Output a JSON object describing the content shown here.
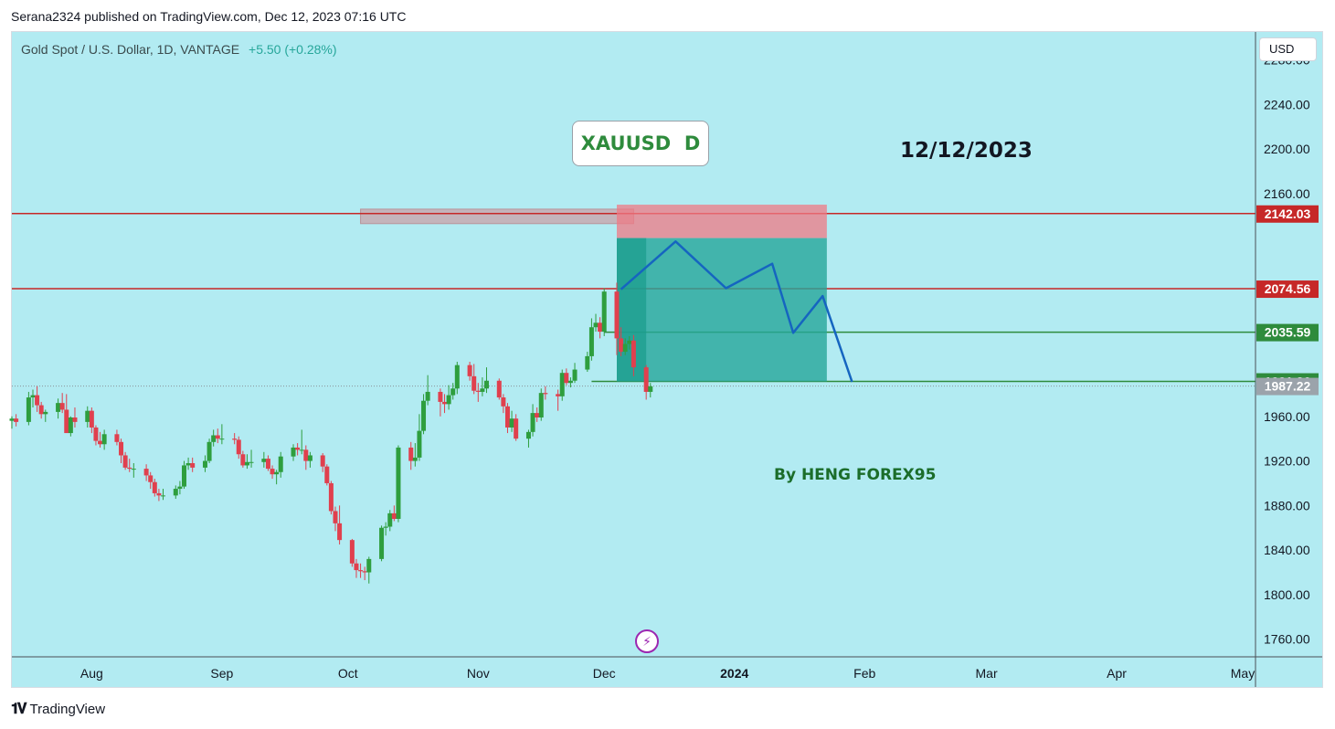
{
  "header": {
    "published_by": "Serana2324 published on TradingView.com, Dec 12, 2023 07:16 UTC"
  },
  "symbol": {
    "description": "Gold Spot / U.S. Dollar, 1D, VANTAGE",
    "change": "+5.50 (+0.28%)"
  },
  "currency_label": "USD",
  "annotations": {
    "title": "XAUUSD  D",
    "date": "12/12/2023",
    "author": "By HENG FOREX95"
  },
  "footer": {
    "brand": "TradingView"
  },
  "colors": {
    "background": "#b2ebf2",
    "up_candle": "#2e9e3e",
    "down_candle": "#e0404e",
    "resistance_line": "#c62828",
    "support_line": "#2e8b3c",
    "target_zone": "#26a69a",
    "stop_zone": "#ef7a84",
    "projection_path": "#1565c0",
    "current_price_tag": "#9ba3ab"
  },
  "chart_data": {
    "type": "candlestick",
    "instrument": "XAUUSD",
    "timeframe": "1D",
    "ylim": [
      1745,
      2305
    ],
    "y_ticks": [
      "2280.00",
      "2240.00",
      "2200.00",
      "2160.00",
      "1960.00",
      "1920.00",
      "1880.00",
      "1840.00",
      "1800.00",
      "1760.00"
    ],
    "x_ticks": [
      "Aug",
      "Sep",
      "Oct",
      "Nov",
      "Dec",
      "2024",
      "Feb",
      "Mar",
      "Apr",
      "May"
    ],
    "x_range": [
      "2023-07-13",
      "2024-05-01"
    ],
    "last_price": 1987.22,
    "price_tags": [
      {
        "label": "2142.03",
        "value": 2142.03,
        "kind": "resistance"
      },
      {
        "label": "2074.56",
        "value": 2074.56,
        "kind": "resistance"
      },
      {
        "label": "2035.59",
        "value": 2035.59,
        "kind": "support"
      },
      {
        "label": "1991.36",
        "value": 1991.36,
        "kind": "support"
      },
      {
        "label": "1987.22",
        "value": 1987.22,
        "kind": "last"
      }
    ],
    "horizontal_lines": [
      {
        "value": 2142.03,
        "from": "2023-07-13",
        "kind": "resistance"
      },
      {
        "value": 2074.56,
        "from": "2023-07-13",
        "kind": "resistance"
      },
      {
        "value": 2035.59,
        "from": "2023-12-01",
        "kind": "support"
      },
      {
        "value": 1991.36,
        "from": "2023-11-28",
        "kind": "support"
      }
    ],
    "supply_zone": {
      "from": "2023-10-04",
      "to": "2023-12-08",
      "high": 2146,
      "low": 2133
    },
    "position": {
      "from": "2023-12-04",
      "to": "2024-01-23",
      "entry": 2120,
      "stop": 2150,
      "target": 1991.36
    },
    "projection_path": [
      {
        "date": "2023-12-05",
        "price": 2074
      },
      {
        "date": "2023-12-18",
        "price": 2117
      },
      {
        "date": "2023-12-30",
        "price": 2075
      },
      {
        "date": "2024-01-10",
        "price": 2097
      },
      {
        "date": "2024-01-15",
        "price": 2035
      },
      {
        "date": "2024-01-22",
        "price": 2068
      },
      {
        "date": "2024-01-29",
        "price": 1991
      }
    ],
    "candles": [
      {
        "d": "2023-07-13",
        "o": 1956,
        "h": 1960,
        "l": 1949,
        "c": 1958
      },
      {
        "d": "2023-07-14",
        "o": 1958,
        "h": 1962,
        "l": 1951,
        "c": 1955
      },
      {
        "d": "2023-07-17",
        "o": 1955,
        "h": 1982,
        "l": 1952,
        "c": 1977
      },
      {
        "d": "2023-07-18",
        "o": 1977,
        "h": 1984,
        "l": 1968,
        "c": 1979
      },
      {
        "d": "2023-07-19",
        "o": 1979,
        "h": 1987,
        "l": 1964,
        "c": 1970
      },
      {
        "d": "2023-07-20",
        "o": 1970,
        "h": 1973,
        "l": 1958,
        "c": 1962
      },
      {
        "d": "2023-07-21",
        "o": 1962,
        "h": 1966,
        "l": 1955,
        "c": 1964
      },
      {
        "d": "2023-07-24",
        "o": 1964,
        "h": 1976,
        "l": 1958,
        "c": 1972
      },
      {
        "d": "2023-07-25",
        "o": 1972,
        "h": 1981,
        "l": 1963,
        "c": 1966
      },
      {
        "d": "2023-07-26",
        "o": 1966,
        "h": 1980,
        "l": 1950,
        "c": 1945
      },
      {
        "d": "2023-07-27",
        "o": 1945,
        "h": 1960,
        "l": 1942,
        "c": 1959
      },
      {
        "d": "2023-07-28",
        "o": 1959,
        "h": 1968,
        "l": 1950,
        "c": 1955
      },
      {
        "d": "2023-07-31",
        "o": 1955,
        "h": 1969,
        "l": 1950,
        "c": 1965
      },
      {
        "d": "2023-08-01",
        "o": 1965,
        "h": 1968,
        "l": 1945,
        "c": 1950
      },
      {
        "d": "2023-08-02",
        "o": 1950,
        "h": 1952,
        "l": 1934,
        "c": 1938
      },
      {
        "d": "2023-08-03",
        "o": 1938,
        "h": 1946,
        "l": 1932,
        "c": 1935
      },
      {
        "d": "2023-08-04",
        "o": 1935,
        "h": 1948,
        "l": 1930,
        "c": 1944
      },
      {
        "d": "2023-08-07",
        "o": 1944,
        "h": 1948,
        "l": 1934,
        "c": 1937
      },
      {
        "d": "2023-08-08",
        "o": 1937,
        "h": 1940,
        "l": 1918,
        "c": 1925
      },
      {
        "d": "2023-08-09",
        "o": 1925,
        "h": 1928,
        "l": 1912,
        "c": 1914
      },
      {
        "d": "2023-08-10",
        "o": 1914,
        "h": 1922,
        "l": 1910,
        "c": 1913
      },
      {
        "d": "2023-08-11",
        "o": 1913,
        "h": 1918,
        "l": 1905,
        "c": 1913
      },
      {
        "d": "2023-08-14",
        "o": 1913,
        "h": 1917,
        "l": 1902,
        "c": 1907
      },
      {
        "d": "2023-08-15",
        "o": 1907,
        "h": 1910,
        "l": 1895,
        "c": 1901
      },
      {
        "d": "2023-08-16",
        "o": 1901,
        "h": 1904,
        "l": 1888,
        "c": 1891
      },
      {
        "d": "2023-08-17",
        "o": 1891,
        "h": 1895,
        "l": 1884,
        "c": 1889
      },
      {
        "d": "2023-08-18",
        "o": 1889,
        "h": 1895,
        "l": 1885,
        "c": 1889
      },
      {
        "d": "2023-08-21",
        "o": 1889,
        "h": 1898,
        "l": 1886,
        "c": 1895
      },
      {
        "d": "2023-08-22",
        "o": 1895,
        "h": 1902,
        "l": 1890,
        "c": 1897
      },
      {
        "d": "2023-08-23",
        "o": 1897,
        "h": 1920,
        "l": 1895,
        "c": 1916
      },
      {
        "d": "2023-08-24",
        "o": 1916,
        "h": 1923,
        "l": 1912,
        "c": 1918
      },
      {
        "d": "2023-08-25",
        "o": 1918,
        "h": 1923,
        "l": 1910,
        "c": 1914
      },
      {
        "d": "2023-08-28",
        "o": 1914,
        "h": 1925,
        "l": 1910,
        "c": 1920
      },
      {
        "d": "2023-08-29",
        "o": 1920,
        "h": 1940,
        "l": 1918,
        "c": 1937
      },
      {
        "d": "2023-08-30",
        "o": 1937,
        "h": 1948,
        "l": 1933,
        "c": 1943
      },
      {
        "d": "2023-08-31",
        "o": 1943,
        "h": 1949,
        "l": 1936,
        "c": 1940
      },
      {
        "d": "2023-09-01",
        "o": 1940,
        "h": 1953,
        "l": 1935,
        "c": 1940
      },
      {
        "d": "2023-09-04",
        "o": 1940,
        "h": 1945,
        "l": 1935,
        "c": 1939
      },
      {
        "d": "2023-09-05",
        "o": 1939,
        "h": 1942,
        "l": 1922,
        "c": 1926
      },
      {
        "d": "2023-09-06",
        "o": 1926,
        "h": 1929,
        "l": 1914,
        "c": 1916
      },
      {
        "d": "2023-09-07",
        "o": 1916,
        "h": 1926,
        "l": 1913,
        "c": 1919
      },
      {
        "d": "2023-09-08",
        "o": 1919,
        "h": 1930,
        "l": 1914,
        "c": 1919
      },
      {
        "d": "2023-09-11",
        "o": 1919,
        "h": 1928,
        "l": 1914,
        "c": 1922
      },
      {
        "d": "2023-09-12",
        "o": 1922,
        "h": 1925,
        "l": 1911,
        "c": 1913
      },
      {
        "d": "2023-09-13",
        "o": 1913,
        "h": 1916,
        "l": 1904,
        "c": 1908
      },
      {
        "d": "2023-09-14",
        "o": 1908,
        "h": 1912,
        "l": 1899,
        "c": 1910
      },
      {
        "d": "2023-09-15",
        "o": 1910,
        "h": 1928,
        "l": 1905,
        "c": 1924
      },
      {
        "d": "2023-09-18",
        "o": 1924,
        "h": 1935,
        "l": 1920,
        "c": 1932
      },
      {
        "d": "2023-09-19",
        "o": 1932,
        "h": 1936,
        "l": 1925,
        "c": 1930
      },
      {
        "d": "2023-09-20",
        "o": 1930,
        "h": 1948,
        "l": 1926,
        "c": 1930
      },
      {
        "d": "2023-09-21",
        "o": 1930,
        "h": 1934,
        "l": 1912,
        "c": 1920
      },
      {
        "d": "2023-09-22",
        "o": 1920,
        "h": 1928,
        "l": 1914,
        "c": 1925
      },
      {
        "d": "2023-09-25",
        "o": 1925,
        "h": 1927,
        "l": 1910,
        "c": 1915
      },
      {
        "d": "2023-09-26",
        "o": 1915,
        "h": 1917,
        "l": 1898,
        "c": 1900
      },
      {
        "d": "2023-09-27",
        "o": 1900,
        "h": 1902,
        "l": 1872,
        "c": 1875
      },
      {
        "d": "2023-09-28",
        "o": 1875,
        "h": 1879,
        "l": 1857,
        "c": 1864
      },
      {
        "d": "2023-09-29",
        "o": 1864,
        "h": 1880,
        "l": 1845,
        "c": 1849
      },
      {
        "d": "2023-10-02",
        "o": 1849,
        "h": 1850,
        "l": 1825,
        "c": 1828
      },
      {
        "d": "2023-10-03",
        "o": 1828,
        "h": 1832,
        "l": 1815,
        "c": 1822
      },
      {
        "d": "2023-10-04",
        "o": 1822,
        "h": 1828,
        "l": 1815,
        "c": 1821
      },
      {
        "d": "2023-10-05",
        "o": 1821,
        "h": 1825,
        "l": 1813,
        "c": 1820
      },
      {
        "d": "2023-10-06",
        "o": 1820,
        "h": 1834,
        "l": 1810,
        "c": 1832
      },
      {
        "d": "2023-10-09",
        "o": 1832,
        "h": 1862,
        "l": 1830,
        "c": 1860
      },
      {
        "d": "2023-10-10",
        "o": 1860,
        "h": 1865,
        "l": 1853,
        "c": 1861
      },
      {
        "d": "2023-10-11",
        "o": 1861,
        "h": 1876,
        "l": 1857,
        "c": 1873
      },
      {
        "d": "2023-10-12",
        "o": 1873,
        "h": 1880,
        "l": 1866,
        "c": 1868
      },
      {
        "d": "2023-10-13",
        "o": 1868,
        "h": 1934,
        "l": 1865,
        "c": 1932
      },
      {
        "d": "2023-10-16",
        "o": 1932,
        "h": 1937,
        "l": 1912,
        "c": 1920
      },
      {
        "d": "2023-10-17",
        "o": 1920,
        "h": 1936,
        "l": 1915,
        "c": 1923
      },
      {
        "d": "2023-10-18",
        "o": 1923,
        "h": 1962,
        "l": 1920,
        "c": 1947
      },
      {
        "d": "2023-10-19",
        "o": 1947,
        "h": 1980,
        "l": 1944,
        "c": 1974
      },
      {
        "d": "2023-10-20",
        "o": 1974,
        "h": 1997,
        "l": 1970,
        "c": 1982
      },
      {
        "d": "2023-10-23",
        "o": 1982,
        "h": 1985,
        "l": 1960,
        "c": 1973
      },
      {
        "d": "2023-10-24",
        "o": 1973,
        "h": 1980,
        "l": 1963,
        "c": 1971
      },
      {
        "d": "2023-10-25",
        "o": 1971,
        "h": 1988,
        "l": 1966,
        "c": 1979
      },
      {
        "d": "2023-10-26",
        "o": 1979,
        "h": 1990,
        "l": 1975,
        "c": 1985
      },
      {
        "d": "2023-10-27",
        "o": 1985,
        "h": 2009,
        "l": 1980,
        "c": 2006
      },
      {
        "d": "2023-10-30",
        "o": 2006,
        "h": 2009,
        "l": 1992,
        "c": 1996
      },
      {
        "d": "2023-10-31",
        "o": 1996,
        "h": 2007,
        "l": 1980,
        "c": 1983
      },
      {
        "d": "2023-11-01",
        "o": 1983,
        "h": 1990,
        "l": 1973,
        "c": 1982
      },
      {
        "d": "2023-11-02",
        "o": 1982,
        "h": 1995,
        "l": 1978,
        "c": 1985
      },
      {
        "d": "2023-11-03",
        "o": 1985,
        "h": 2004,
        "l": 1981,
        "c": 1992
      },
      {
        "d": "2023-11-06",
        "o": 1992,
        "h": 1994,
        "l": 1975,
        "c": 1977
      },
      {
        "d": "2023-11-07",
        "o": 1977,
        "h": 1980,
        "l": 1963,
        "c": 1969
      },
      {
        "d": "2023-11-08",
        "o": 1969,
        "h": 1972,
        "l": 1945,
        "c": 1950
      },
      {
        "d": "2023-11-09",
        "o": 1950,
        "h": 1965,
        "l": 1946,
        "c": 1958
      },
      {
        "d": "2023-11-10",
        "o": 1958,
        "h": 1962,
        "l": 1938,
        "c": 1940
      },
      {
        "d": "2023-11-13",
        "o": 1940,
        "h": 1948,
        "l": 1932,
        "c": 1946
      },
      {
        "d": "2023-11-14",
        "o": 1946,
        "h": 1971,
        "l": 1942,
        "c": 1963
      },
      {
        "d": "2023-11-15",
        "o": 1963,
        "h": 1968,
        "l": 1955,
        "c": 1959
      },
      {
        "d": "2023-11-16",
        "o": 1959,
        "h": 1985,
        "l": 1956,
        "c": 1981
      },
      {
        "d": "2023-11-17",
        "o": 1981,
        "h": 1987,
        "l": 1975,
        "c": 1980
      },
      {
        "d": "2023-11-20",
        "o": 1980,
        "h": 1984,
        "l": 1965,
        "c": 1978
      },
      {
        "d": "2023-11-21",
        "o": 1978,
        "h": 2002,
        "l": 1974,
        "c": 1999
      },
      {
        "d": "2023-11-22",
        "o": 1999,
        "h": 2003,
        "l": 1988,
        "c": 1990
      },
      {
        "d": "2023-11-23",
        "o": 1990,
        "h": 1995,
        "l": 1986,
        "c": 1992
      },
      {
        "d": "2023-11-24",
        "o": 1992,
        "h": 2008,
        "l": 1990,
        "c": 2002
      },
      {
        "d": "2023-11-27",
        "o": 2002,
        "h": 2018,
        "l": 2000,
        "c": 2014
      },
      {
        "d": "2023-11-28",
        "o": 2014,
        "h": 2048,
        "l": 2010,
        "c": 2040
      },
      {
        "d": "2023-11-29",
        "o": 2040,
        "h": 2052,
        "l": 2036,
        "c": 2044
      },
      {
        "d": "2023-11-30",
        "o": 2044,
        "h": 2049,
        "l": 2030,
        "c": 2036
      },
      {
        "d": "2023-12-01",
        "o": 2036,
        "h": 2075,
        "l": 2032,
        "c": 2072
      },
      {
        "d": "2023-12-04",
        "o": 2072,
        "h": 2080,
        "l": 2015,
        "c": 2030
      },
      {
        "d": "2023-12-05",
        "o": 2030,
        "h": 2040,
        "l": 2014,
        "c": 2018
      },
      {
        "d": "2023-12-06",
        "o": 2018,
        "h": 2030,
        "l": 2015,
        "c": 2025
      },
      {
        "d": "2023-12-07",
        "o": 2025,
        "h": 2032,
        "l": 2020,
        "c": 2028
      },
      {
        "d": "2023-12-08",
        "o": 2028,
        "h": 2033,
        "l": 1996,
        "c": 2004
      },
      {
        "d": "2023-12-11",
        "o": 2004,
        "h": 2006,
        "l": 1975,
        "c": 1982
      },
      {
        "d": "2023-12-12",
        "o": 1982,
        "h": 1990,
        "l": 1977,
        "c": 1987
      }
    ]
  }
}
